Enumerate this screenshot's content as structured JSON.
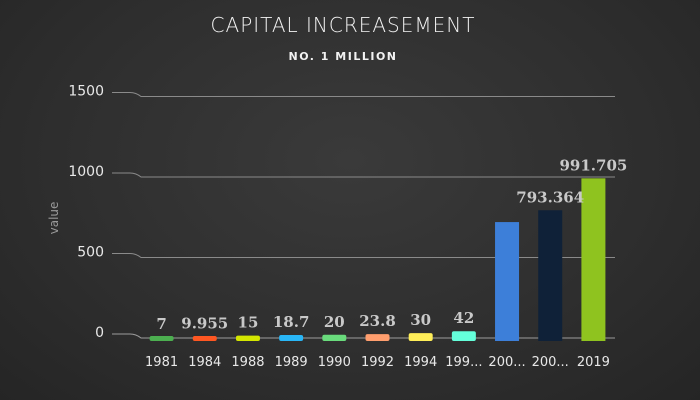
{
  "chart_data": {
    "type": "bar",
    "title": "CAPITAL INCREASEMENT",
    "subtitle": "NO. 1 MILLION",
    "ylabel": "value",
    "xlabel": "",
    "ylim": [
      0,
      1500
    ],
    "yticks": [
      0,
      500,
      1000,
      1500
    ],
    "grid": true,
    "categories": [
      "1981",
      "1984",
      "1988",
      "1989",
      "1990",
      "1992",
      "1994",
      "199...",
      "200...",
      "200...",
      "2019"
    ],
    "values": [
      7,
      9.955,
      15,
      18.7,
      20,
      23.8,
      30,
      42,
      720,
      793.364,
      991.705
    ],
    "data_labels": [
      "7",
      "9.955",
      "15",
      "18.7",
      "20",
      "23.8",
      "30",
      "42",
      "",
      "793.364",
      "991.705"
    ],
    "colors": [
      "#4caf50",
      "#ff5722",
      "#d4e600",
      "#29b6f6",
      "#69db7c",
      "#ff9e6e",
      "#ffee58",
      "#64ffda",
      "#3d7fd9",
      "#0f2138",
      "#8fc31f"
    ]
  }
}
